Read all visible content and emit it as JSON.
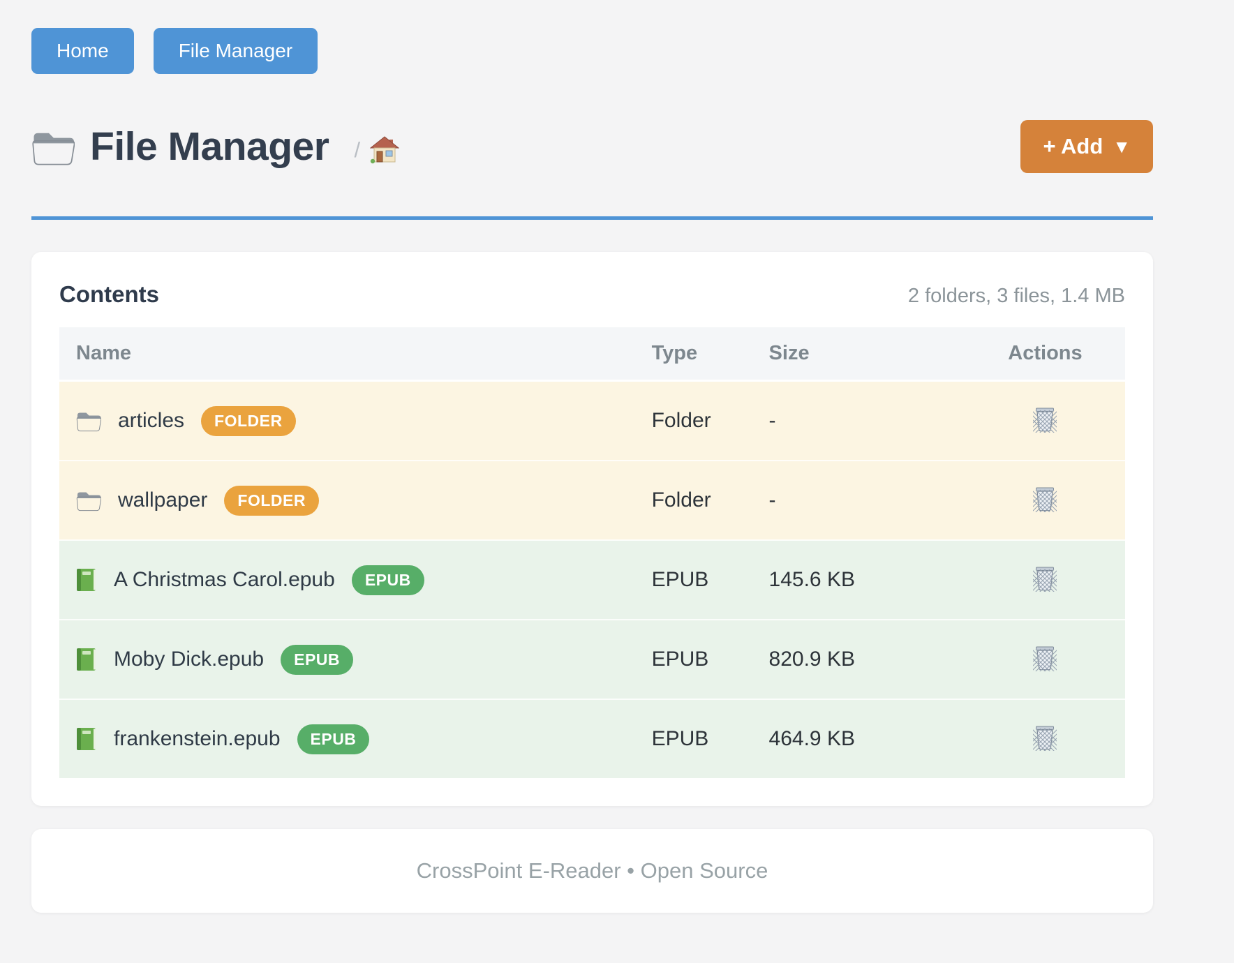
{
  "nav": {
    "items": [
      {
        "label": "Home"
      },
      {
        "label": "File Manager"
      }
    ]
  },
  "header": {
    "title": "File Manager",
    "title_icon": "folder-icon",
    "breadcrumb_separator": "/",
    "breadcrumb_home_icon": "home-icon",
    "add_button": {
      "label": "+ Add",
      "caret": "▼"
    }
  },
  "card": {
    "title": "Contents",
    "summary": "2 folders, 3 files, 1.4 MB"
  },
  "table": {
    "columns": [
      "Name",
      "Type",
      "Size",
      "Actions"
    ],
    "action_icon": "wastebasket-icon",
    "rows": [
      {
        "name": "articles",
        "badge": "FOLDER",
        "kind": "folder",
        "icon": "folder-icon",
        "type": "Folder",
        "size": "-"
      },
      {
        "name": "wallpaper",
        "badge": "FOLDER",
        "kind": "folder",
        "icon": "folder-icon",
        "type": "Folder",
        "size": "-"
      },
      {
        "name": "A Christmas Carol.epub",
        "badge": "EPUB",
        "kind": "epub",
        "icon": "book-icon",
        "type": "EPUB",
        "size": "145.6 KB"
      },
      {
        "name": "Moby Dick.epub",
        "badge": "EPUB",
        "kind": "epub",
        "icon": "book-icon",
        "type": "EPUB",
        "size": "820.9 KB"
      },
      {
        "name": "frankenstein.epub",
        "badge": "EPUB",
        "kind": "epub",
        "icon": "book-icon",
        "type": "EPUB",
        "size": "464.9 KB"
      }
    ]
  },
  "footer": {
    "text": "CrossPoint E-Reader • Open Source"
  },
  "colors": {
    "primary_blue": "#4f94d6",
    "accent_orange": "#d5823a",
    "badge_orange": "#eaa33e",
    "badge_green": "#57ae68",
    "folder_row_bg": "#fcf5e2",
    "epub_row_bg": "#e9f3ea",
    "heading_color": "#333e4e",
    "muted_color": "#8b9499"
  }
}
